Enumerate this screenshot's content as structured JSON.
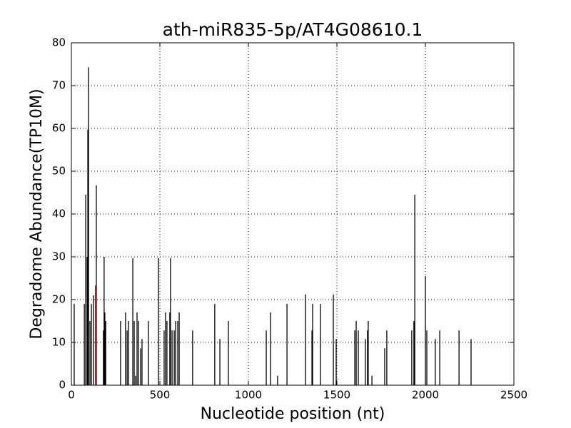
{
  "chart_data": {
    "type": "stem",
    "title": "ath-miR835-5p/AT4G08610.1",
    "xlabel": "Nucleotide position (nt)",
    "ylabel": "Degradome Abundance(TP10M)",
    "xlim": [
      0,
      2500
    ],
    "xticks": [
      0,
      500,
      1000,
      1500,
      2000,
      2500
    ],
    "ylim": [
      0,
      80
    ],
    "yticks": [
      0,
      10,
      20,
      30,
      40,
      50,
      60,
      70,
      80
    ],
    "grid": true,
    "series": [
      {
        "color": "#000000",
        "x": [
          16,
          73,
          81,
          89,
          93,
          97,
          105,
          113,
          125,
          141,
          181,
          185,
          189,
          194,
          278,
          306,
          315,
          323,
          347,
          355,
          363,
          371,
          379,
          391,
          399,
          435,
          492,
          524,
          532,
          540,
          556,
          560,
          569,
          581,
          589,
          601,
          609,
          685,
          810,
          839,
          887,
          1101,
          1125,
          1165,
          1218,
          1323,
          1359,
          1363,
          1407,
          1480,
          1496,
          1601,
          1609,
          1621,
          1661,
          1673,
          1677,
          1698,
          1770,
          1782,
          1923,
          1935,
          1940,
          2000,
          2008,
          2056,
          2081,
          2190,
          2258
        ],
        "values": [
          19,
          19,
          44.5,
          30,
          59.7,
          74.3,
          15,
          19,
          21,
          46.7,
          12.8,
          30,
          17,
          15,
          15,
          17,
          12.8,
          15,
          29.7,
          15,
          2.2,
          17,
          15,
          8.6,
          10.8,
          15,
          29.7,
          12.8,
          17,
          15,
          17,
          29.7,
          12.8,
          12.8,
          15,
          15,
          17,
          12.8,
          19,
          10.8,
          15,
          12.8,
          17,
          2.2,
          19,
          21.2,
          12.8,
          19,
          19,
          21.2,
          10.8,
          12.8,
          15,
          12.8,
          10.8,
          12.8,
          15,
          2.2,
          8.6,
          12.8,
          12.8,
          15,
          44.5,
          25.5,
          12.8,
          10.8,
          12.8,
          12.8,
          10.8
        ]
      },
      {
        "color": "#b22222",
        "x": [
          137
        ],
        "values": [
          23.3
        ]
      }
    ]
  }
}
